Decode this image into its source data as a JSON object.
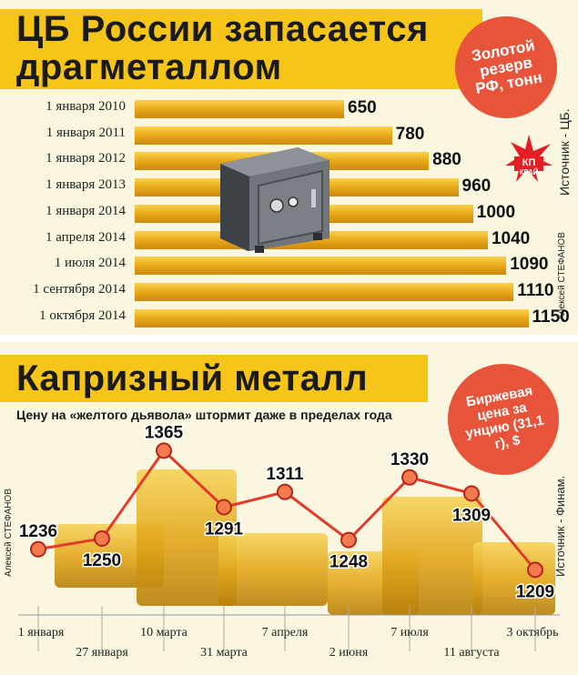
{
  "reserves": {
    "title_line1": "ЦБ России запасается",
    "title_line2": "драгметаллом",
    "badge": "Золотой резерв РФ, тонн",
    "source": "Источник - ЦБ.",
    "author": "Алексей СТЕФАНОВ",
    "logo": "КП КРАЙ"
  },
  "gold_price": {
    "title": "Капризный металл",
    "subtitle": "Цену на «желтого дьявола» штормит даже в пределах года",
    "badge": "Биржевая цена за унцию (31,1 г), $",
    "source": "Источник - Финам.",
    "author": "Алексей СТЕФАНОВ"
  },
  "chart_data": [
    {
      "type": "bar",
      "orientation": "horizontal",
      "title": "ЦБ России запасается драгметаллом",
      "unit": "Золотой резерв РФ, тонн",
      "categories": [
        "1 января 2010",
        "1 января 2011",
        "1 января 2012",
        "1 января 2013",
        "1 января 2014",
        "1 апреля 2014",
        "1 июля 2014",
        "1 сентября 2014",
        "1 октября 2014"
      ],
      "values": [
        650,
        780,
        880,
        960,
        1000,
        1040,
        1090,
        1110,
        1150
      ],
      "colors": {
        "bar": "#e9a919"
      }
    },
    {
      "type": "line",
      "title": "Капризный металл",
      "unit": "Биржевая цена за унцию (31,1 г), $",
      "categories": [
        "1 января",
        "27 января",
        "10 марта",
        "31 марта",
        "7 апреля",
        "2 июня",
        "7 июля",
        "11 августа",
        "3 октябрь"
      ],
      "values": [
        1236,
        1250,
        1365,
        1291,
        1311,
        1248,
        1330,
        1309,
        1209
      ],
      "ylim": [
        1150,
        1400
      ],
      "colors": {
        "line": "#e23b2a",
        "marker": "#f27a4d"
      }
    }
  ],
  "colors": {
    "accent_yellow": "#f6c518",
    "badge_red": "#e8543a",
    "panel": "#fbf6df"
  }
}
